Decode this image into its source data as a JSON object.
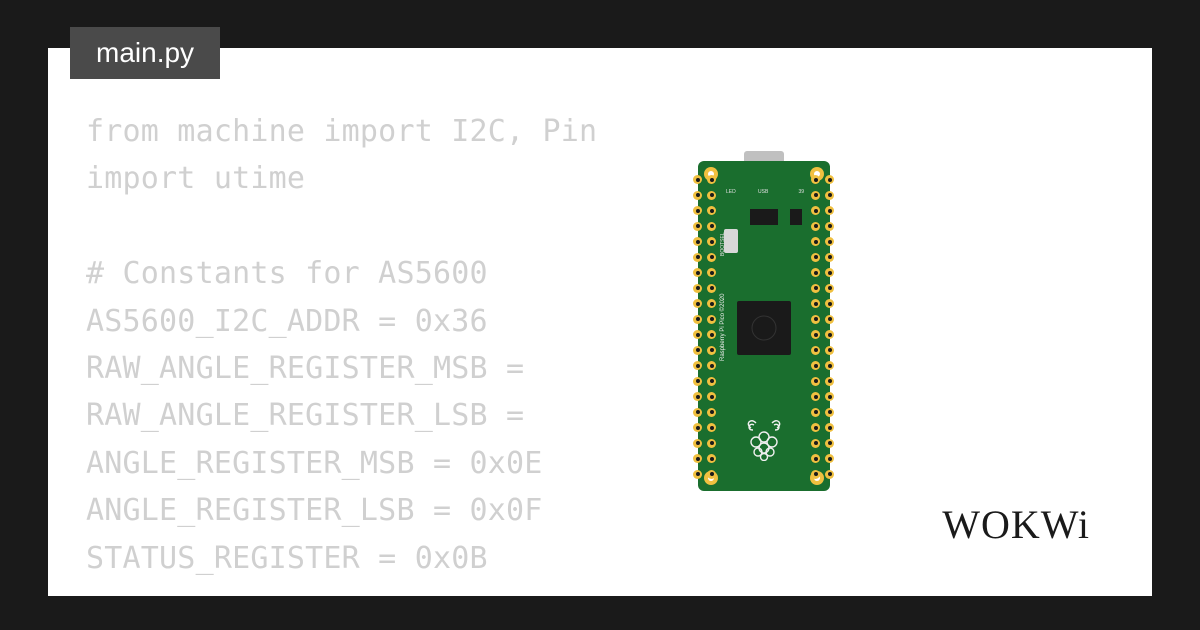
{
  "tab": {
    "filename": "main.py"
  },
  "code": {
    "lines": [
      "from machine import I2C, Pin",
      "import utime",
      "",
      "# Constants for AS5600",
      "AS5600_I2C_ADDR = 0x36",
      "RAW_ANGLE_REGISTER_MSB =",
      "RAW_ANGLE_REGISTER_LSB =",
      "ANGLE_REGISTER_MSB = 0x0E",
      "ANGLE_REGISTER_LSB = 0x0F",
      "STATUS_REGISTER = 0x0B"
    ],
    "font_size": 30,
    "text_color": "#d0d0d0"
  },
  "board": {
    "name": "Raspberry Pi Pico",
    "pcb_color": "#1a6e2e",
    "pin_color": "#f0c040",
    "chip_color": "#1a1a1a",
    "pins_per_side": 20,
    "side_text": "Raspberry Pi Pico ©2020",
    "led_label": "LED",
    "usb_label": "USB",
    "num_label": "39",
    "bootsel_label": "BOOTSEL"
  },
  "branding": {
    "logo_text": "WOKWi"
  },
  "colors": {
    "page_bg": "#1a1a1a",
    "editor_bg": "#ffffff",
    "tab_bg": "#4a4a4a",
    "tab_fg": "#ffffff"
  }
}
